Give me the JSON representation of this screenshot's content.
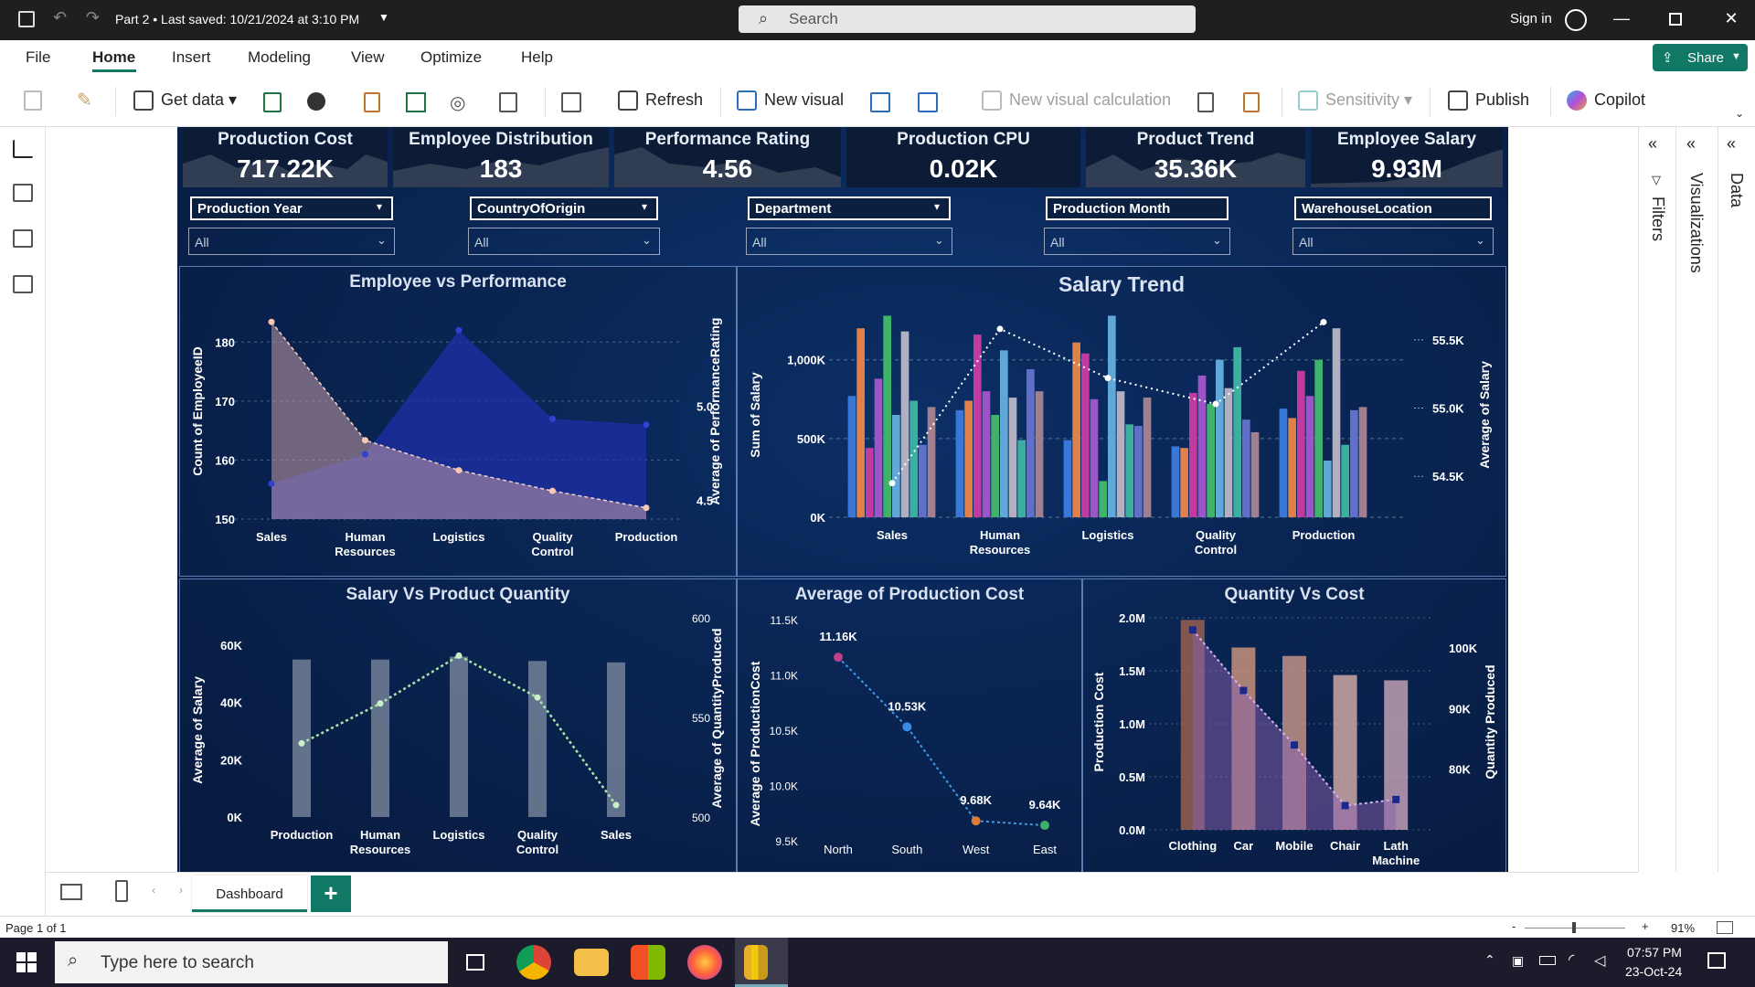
{
  "window": {
    "title": "Part 2 • Last saved: 10/21/2024 at 3:10 PM",
    "search_placeholder": "Search",
    "sign_in": "Sign in"
  },
  "menu": {
    "items": [
      "File",
      "Home",
      "Insert",
      "Modeling",
      "View",
      "Optimize",
      "Help"
    ],
    "active": "Home",
    "share": "Share"
  },
  "ribbon": {
    "get_data": "Get data",
    "refresh": "Refresh",
    "new_visual": "New visual",
    "new_visual_calc": "New visual calculation",
    "sensitivity": "Sensitivity",
    "publish": "Publish",
    "copilot": "Copilot"
  },
  "kpis": [
    {
      "title": "Production Cost",
      "value": "717.22K"
    },
    {
      "title": "Employee Distribution",
      "value": "183"
    },
    {
      "title": "Performance Rating",
      "value": "4.56"
    },
    {
      "title": "Production CPU",
      "value": "0.02K"
    },
    {
      "title": "Product Trend",
      "value": "35.36K"
    },
    {
      "title": "Employee Salary",
      "value": "9.93M"
    }
  ],
  "slicers": [
    {
      "title": "Production Year",
      "value": "All"
    },
    {
      "title": "CountryOfOrigin",
      "value": "All"
    },
    {
      "title": "Department",
      "value": "All"
    },
    {
      "title": "Production Month",
      "value": "All"
    },
    {
      "title": "WarehouseLocation",
      "value": "All"
    }
  ],
  "panes": {
    "filters": "Filters",
    "visualizations": "Visualizations",
    "data": "Data"
  },
  "pages": {
    "tab": "Dashboard",
    "add": "+",
    "page_info": "Page 1 of 1",
    "zoom": "91%"
  },
  "taskbar": {
    "search": "Type here to search",
    "time": "07:57 PM",
    "date": "23-Oct-24"
  },
  "chart_data": [
    {
      "id": "emp_vs_perf",
      "type": "area",
      "title": "Employee vs Performance",
      "categories": [
        "Sales",
        "Human Resources",
        "Logistics",
        "Quality Control",
        "Production"
      ],
      "series": [
        {
          "name": "Count of EmployeeID",
          "axis": "left",
          "values": [
            156,
            161,
            182,
            167,
            166
          ]
        },
        {
          "name": "Average of PerformanceRating",
          "axis": "right",
          "values": [
            5.45,
            4.82,
            4.66,
            4.55,
            4.46
          ]
        }
      ],
      "ylabel": "Count of EmployeeID",
      "y2label": "Average of PerformanceRating",
      "yticks": [
        150,
        160,
        170,
        180
      ],
      "y2ticks": [
        "4.5",
        "5.0"
      ],
      "ylim": [
        150,
        185
      ],
      "y2lim": [
        4.4,
        5.5
      ]
    },
    {
      "id": "salary_trend",
      "type": "bar",
      "title": "Salary Trend",
      "categories": [
        "Sales",
        "Human Resources",
        "Logistics",
        "Quality Control",
        "Production"
      ],
      "bars_per_category": [
        [
          770,
          1200,
          440,
          880,
          1280,
          650,
          1180,
          740,
          460,
          700
        ],
        [
          680,
          740,
          1160,
          800,
          650,
          1060,
          760,
          490,
          940,
          800
        ],
        [
          490,
          1110,
          1040,
          750,
          230,
          1280,
          800,
          590,
          580,
          760
        ],
        [
          450,
          440,
          790,
          900,
          720,
          1000,
          820,
          1080,
          620,
          540
        ],
        [
          690,
          630,
          930,
          770,
          1000,
          360,
          1200,
          460,
          680,
          700
        ]
      ],
      "line": {
        "name": "Average of Salary",
        "values": [
          54.45,
          55.58,
          55.22,
          55.03,
          55.63
        ]
      },
      "ylabel": "Sum of Salary",
      "y2label": "Average of Salary",
      "yticks": [
        "0K",
        "500K",
        "1,000K"
      ],
      "y2ticks": [
        "54.5K",
        "55.0K",
        "55.5K"
      ],
      "ylim": [
        0,
        1300
      ],
      "y2lim": [
        54.2,
        55.7
      ]
    },
    {
      "id": "salary_vs_qty",
      "type": "bar",
      "title": "Salary Vs Product Quantity",
      "categories": [
        "Production",
        "Human Resources",
        "Logistics",
        "Quality Control",
        "Sales"
      ],
      "values": [
        55,
        55,
        56,
        54.5,
        54
      ],
      "line": {
        "name": "Average of QuantityProduced",
        "values": [
          537,
          557,
          581,
          560,
          506
        ]
      },
      "ylabel": "Average of Salary",
      "y2label": "Average of QuantityProduced",
      "yticks": [
        "0K",
        "20K",
        "40K",
        "60K"
      ],
      "y2ticks": [
        "500",
        "550",
        "600"
      ],
      "ylim": [
        0,
        60
      ],
      "y2lim": [
        500,
        600
      ]
    },
    {
      "id": "avg_prod_cost",
      "type": "line",
      "title": "Average of Production Cost",
      "categories": [
        "North",
        "South",
        "West",
        "East"
      ],
      "values": [
        11.16,
        10.53,
        9.68,
        9.64
      ],
      "data_labels": [
        "11.16K",
        "10.53K",
        "9.68K",
        "9.64K"
      ],
      "ylabel": "Average of ProductionCost",
      "yticks": [
        "9.5K",
        "10.0K",
        "10.5K",
        "11.0K",
        "11.5K"
      ],
      "ylim": [
        9.5,
        11.5
      ]
    },
    {
      "id": "qty_vs_cost",
      "type": "bar",
      "title": "Quantity Vs Cost",
      "categories": [
        "Clothing",
        "Car",
        "Mobile",
        "Chair",
        "Lath Machine"
      ],
      "values": [
        1.98,
        1.72,
        1.64,
        1.46,
        1.41
      ],
      "line": {
        "name": "Quantity Produced",
        "values": [
          103,
          93,
          84,
          74,
          75
        ]
      },
      "ylabel": "Production Cost",
      "y2label": "Quantity Produced",
      "yticks": [
        "0.0M",
        "0.5M",
        "1.0M",
        "1.5M",
        "2.0M"
      ],
      "y2ticks": [
        "80K",
        "90K",
        "100K"
      ],
      "ylim": [
        0,
        2.0
      ],
      "y2lim": [
        70,
        105
      ]
    }
  ]
}
